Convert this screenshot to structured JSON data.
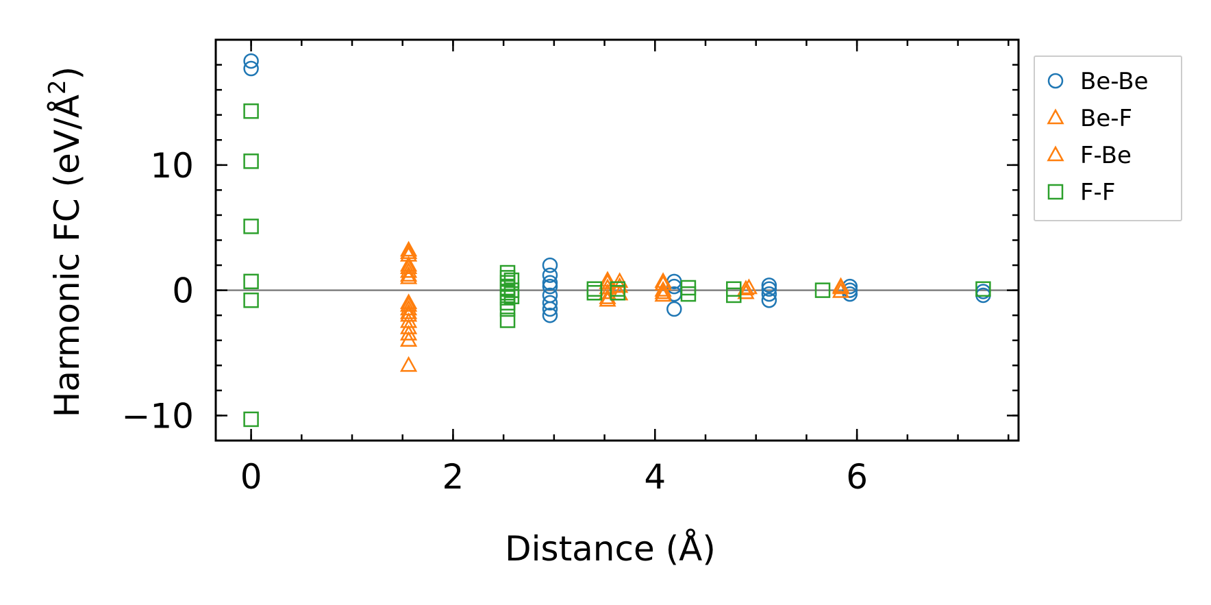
{
  "chart_data": {
    "type": "scatter",
    "title": "",
    "xlabel": "Distance (Å)",
    "ylabel_main": "Harmonic FC (eV/Å",
    "ylabel_sup": "2",
    "ylabel_close": ")",
    "xlim": [
      -0.35,
      7.6
    ],
    "ylim": [
      -12,
      20
    ],
    "x_ticks": [
      0,
      2,
      4,
      6
    ],
    "x_tick_labels": [
      "0",
      "2",
      "4",
      "6"
    ],
    "x_minor_step": 0.5,
    "y_ticks": [
      -10,
      0,
      10
    ],
    "y_tick_labels": [
      "−10",
      "0",
      "10"
    ],
    "y_minor_step": 2,
    "grid": false,
    "reference_line_y": 0,
    "legend_placement": "outside-right-top",
    "series": [
      {
        "name": "Be-Be",
        "marker": "circle",
        "color": "#1f77b4",
        "points": [
          [
            0,
            18.3
          ],
          [
            0,
            17.7
          ],
          [
            2.96,
            2.0
          ],
          [
            2.96,
            1.2
          ],
          [
            2.96,
            0.6
          ],
          [
            2.96,
            0.3
          ],
          [
            2.96,
            -0.4
          ],
          [
            2.96,
            -1.0
          ],
          [
            2.96,
            -1.5
          ],
          [
            2.96,
            -2.0
          ],
          [
            4.19,
            0.7
          ],
          [
            4.19,
            0.3
          ],
          [
            4.19,
            -0.3
          ],
          [
            4.19,
            -1.5
          ],
          [
            5.13,
            0.4
          ],
          [
            5.13,
            0.1
          ],
          [
            5.13,
            -0.3
          ],
          [
            5.13,
            -0.8
          ],
          [
            5.93,
            0.3
          ],
          [
            5.93,
            0.0
          ],
          [
            5.93,
            -0.3
          ],
          [
            7.25,
            -0.1
          ],
          [
            7.25,
            -0.4
          ]
        ]
      },
      {
        "name": "Be-F",
        "marker": "triangle",
        "color": "#ff7f0e",
        "points": [
          [
            1.56,
            3.2
          ],
          [
            1.56,
            2.8
          ],
          [
            1.56,
            2.0
          ],
          [
            1.56,
            1.5
          ],
          [
            1.56,
            1.0
          ],
          [
            1.56,
            -1.0
          ],
          [
            1.56,
            -1.5
          ],
          [
            1.56,
            -2.0
          ],
          [
            1.56,
            -2.5
          ],
          [
            1.56,
            -3.5
          ],
          [
            1.56,
            -4.0
          ],
          [
            1.56,
            -6.0
          ],
          [
            3.53,
            0.6
          ],
          [
            3.53,
            0.2
          ],
          [
            3.53,
            -0.2
          ],
          [
            3.53,
            -0.6
          ],
          [
            4.08,
            0.5
          ],
          [
            4.08,
            0.0
          ],
          [
            4.08,
            -0.4
          ],
          [
            4.9,
            0.1
          ],
          [
            4.9,
            -0.2
          ],
          [
            5.84,
            0.2
          ],
          [
            5.84,
            -0.1
          ]
        ]
      },
      {
        "name": "F-Be",
        "marker": "triangle",
        "color": "#ff7f0e",
        "points": [
          [
            1.56,
            3.0
          ],
          [
            1.56,
            1.8
          ],
          [
            1.56,
            1.2
          ],
          [
            1.56,
            -1.2
          ],
          [
            1.56,
            -1.8
          ],
          [
            1.56,
            -3.0
          ],
          [
            3.53,
            0.8
          ],
          [
            3.53,
            -0.8
          ],
          [
            3.65,
            0.7
          ],
          [
            3.65,
            0.3
          ],
          [
            3.65,
            -0.3
          ],
          [
            4.08,
            0.7
          ],
          [
            4.08,
            -0.2
          ],
          [
            4.93,
            0.2
          ],
          [
            5.84,
            0.3
          ]
        ]
      },
      {
        "name": "F-F",
        "marker": "square",
        "color": "#2ca02c",
        "points": [
          [
            0,
            14.3
          ],
          [
            0,
            10.3
          ],
          [
            0,
            5.1
          ],
          [
            0,
            0.7
          ],
          [
            0,
            -0.8
          ],
          [
            0,
            -10.3
          ],
          [
            2.54,
            1.4
          ],
          [
            2.54,
            1.0
          ],
          [
            2.54,
            0.6
          ],
          [
            2.54,
            0.2
          ],
          [
            2.54,
            -0.2
          ],
          [
            2.54,
            -0.6
          ],
          [
            2.54,
            -1.0
          ],
          [
            2.54,
            -1.5
          ],
          [
            2.54,
            -2.4
          ],
          [
            2.58,
            0.8
          ],
          [
            2.58,
            0.0
          ],
          [
            2.58,
            -0.5
          ],
          [
            3.4,
            0.1
          ],
          [
            3.4,
            -0.2
          ],
          [
            3.63,
            0.1
          ],
          [
            3.63,
            -0.2
          ],
          [
            4.33,
            0.2
          ],
          [
            4.33,
            -0.3
          ],
          [
            4.78,
            0.1
          ],
          [
            4.78,
            -0.4
          ],
          [
            5.66,
            0.0
          ],
          [
            7.25,
            0.1
          ]
        ]
      }
    ]
  }
}
